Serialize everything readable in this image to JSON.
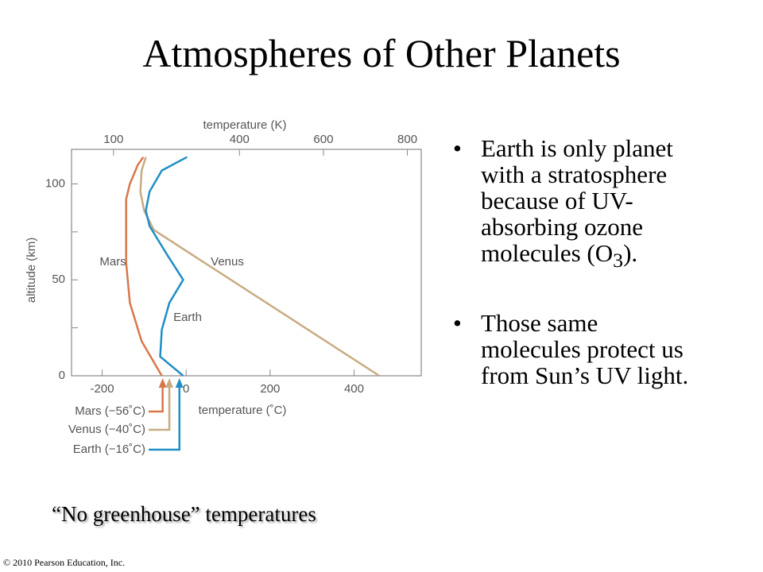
{
  "title": "Atmospheres of Other Planets",
  "bullets": [
    {
      "text": "Earth is only planet with a stratosphere because of UV-absorbing ozone molecules (O",
      "sub": "3",
      "after": ")."
    },
    {
      "text": "Those same molecules protect us from Sun’s UV light."
    }
  ],
  "caption": "“No greenhouse” temperatures",
  "footer": "© 2010 Pearson Education, Inc.",
  "chart_data": {
    "type": "line",
    "x_label": "temperature (˚C)",
    "x2_label": "temperature (K)",
    "y_label": "altitude (km)",
    "xlim": [
      -273,
      560
    ],
    "xticks": [
      -200,
      0,
      200,
      400
    ],
    "x2lim": [
      0,
      833
    ],
    "x2ticks": [
      100,
      400,
      600,
      800
    ],
    "ylim": [
      0,
      118
    ],
    "yticks": [
      0,
      50,
      100
    ],
    "yminor_ticks": [
      25,
      75
    ],
    "series": [
      {
        "name": "Mars",
        "color": "#d9774b",
        "x": [
          -58,
          -106,
          -134,
          -143,
          -143,
          -134,
          -115,
          -102
        ],
        "values": [
          0,
          18,
          38,
          59,
          92,
          100,
          110,
          114
        ]
      },
      {
        "name": "Venus",
        "color": "#c8ab82",
        "x": [
          460,
          -77,
          -100,
          -109,
          -106,
          -96
        ],
        "values": [
          0,
          76,
          86,
          96,
          107,
          114
        ]
      },
      {
        "name": "Earth",
        "color": "#1f8fc6",
        "x": [
          -7,
          -62,
          -58,
          -40,
          -7,
          -45,
          -87,
          -96,
          -87,
          -58,
          2
        ],
        "values": [
          0,
          10,
          24,
          38,
          50,
          63,
          78,
          86,
          96,
          107,
          114
        ]
      }
    ],
    "no_greenhouse": [
      {
        "label": "Mars (−56˚C)",
        "value": -56,
        "color": "#d9774b"
      },
      {
        "label": "Venus (−40˚C)",
        "value": -40,
        "color": "#c8ab82"
      },
      {
        "label": "Earth (−16˚C)",
        "value": -16,
        "color": "#1f8fc6"
      }
    ]
  }
}
